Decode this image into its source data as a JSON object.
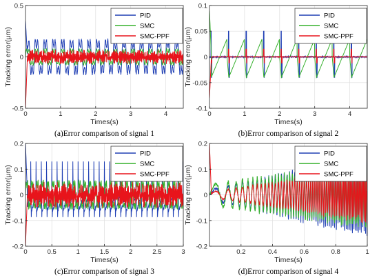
{
  "colors": {
    "PID": "#1f3fb4",
    "SMC": "#35b02c",
    "SMC-PPF": "#e8141b",
    "grid": "#dedede",
    "axis": "#262626"
  },
  "chart_data": [
    {
      "type": "line",
      "caption": "(a)Error comparison of signal 1",
      "xlabel": "Times(s)",
      "ylabel": "Tracking error(μm)",
      "xlim": [
        0,
        4.5
      ],
      "ylim": [
        -0.5,
        0.5
      ],
      "xticks": [
        "0",
        "1",
        "2",
        "3",
        "4"
      ],
      "xtick_values": [
        0,
        1,
        2,
        3,
        4
      ],
      "yticks": [
        "-0.5",
        "0",
        "0.5"
      ],
      "ytick_values": [
        -0.5,
        0,
        0.5
      ],
      "grid": true,
      "legend": "top-right",
      "series": [
        {
          "name": "PID",
          "shape": "oscillation",
          "frequency": 4.0,
          "amplitude": 0.2,
          "spike_start": 0.35
        },
        {
          "name": "SMC",
          "shape": "oscillation",
          "frequency": 4.0,
          "amplitude": 0.09
        },
        {
          "name": "SMC-PPF",
          "shape": "noise",
          "frequency": 40,
          "amplitude": 0.055,
          "spike_start": -0.5
        }
      ]
    },
    {
      "type": "line",
      "caption": "(b)Error comparison of signal 2",
      "xlabel": "Times(s)",
      "ylabel": "Tracking error(μm)",
      "xlim": [
        0,
        4.5
      ],
      "ylim": [
        -0.1,
        0.1
      ],
      "xticks": [
        "0",
        "1",
        "2",
        "3",
        "4"
      ],
      "xtick_values": [
        0,
        1,
        2,
        3,
        4
      ],
      "yticks": [
        "-0.1",
        "-0.05",
        "0",
        "0.05",
        "0.1"
      ],
      "ytick_values": [
        -0.1,
        -0.05,
        0,
        0.05,
        0.1
      ],
      "grid": true,
      "legend": "top-right",
      "series": [
        {
          "name": "PID",
          "shape": "pulses",
          "period": 0.5,
          "amplitude": 0.05
        },
        {
          "name": "SMC",
          "shape": "ramps",
          "period": 0.5,
          "amplitude": 0.05,
          "spike_start": 0.09
        },
        {
          "name": "SMC-PPF",
          "shape": "pulses",
          "period": 0.5,
          "amplitude": 0.015,
          "spike_start": -0.08
        }
      ]
    },
    {
      "type": "line",
      "caption": "(c)Error comparison of signal 3",
      "xlabel": "Times(s)",
      "ylabel": "Tracking error(μm)",
      "xlim": [
        0,
        3
      ],
      "ylim": [
        -0.2,
        0.2
      ],
      "xticks": [
        "0",
        "0.5",
        "1",
        "1.5",
        "2",
        "2.5",
        "3"
      ],
      "xtick_values": [
        0,
        0.5,
        1,
        1.5,
        2,
        2.5,
        3
      ],
      "yticks": [
        "-0.2",
        "-0.1",
        "0",
        "0.1",
        "0.2"
      ],
      "ytick_values": [
        -0.2,
        -0.1,
        0,
        0.1,
        0.2
      ],
      "grid": true,
      "legend": "top-right",
      "series": [
        {
          "name": "PID",
          "shape": "sawtooth",
          "frequency": 10,
          "amplitude": 0.13,
          "spike_start": 0.2
        },
        {
          "name": "SMC",
          "shape": "oscillation",
          "frequency": 10,
          "amplitude": 0.065
        },
        {
          "name": "SMC-PPF",
          "shape": "noise",
          "frequency": 60,
          "amplitude": 0.04,
          "spike_start": -0.2
        }
      ]
    },
    {
      "type": "line",
      "caption": "(d)Error comparison of signal 4",
      "xlabel": "Times(s)",
      "ylabel": "Tracking error(μm)",
      "xlim": [
        0,
        1
      ],
      "ylim": [
        -0.2,
        0.2
      ],
      "xticks": [
        "0.2",
        "0.4",
        "0.6",
        "0.8",
        "1"
      ],
      "xtick_values": [
        0.2,
        0.4,
        0.6,
        0.8,
        1
      ],
      "yticks": [
        "-0.2",
        "-0.1",
        "0",
        "0.1",
        "0.2"
      ],
      "ytick_values": [
        -0.2,
        -0.1,
        0,
        0.1,
        0.2
      ],
      "grid": true,
      "legend": "top-right",
      "series": [
        {
          "name": "PID",
          "shape": "chirp",
          "amplitude_start": 0.02,
          "amplitude_end": 0.15
        },
        {
          "name": "SMC",
          "shape": "chirp",
          "amplitude_start": 0.04,
          "amplitude_end": 0.12
        },
        {
          "name": "SMC-PPF",
          "shape": "chirp",
          "amplitude_start": 0.01,
          "amplitude_end": 0.1,
          "spike_start": 0.2
        }
      ]
    }
  ]
}
